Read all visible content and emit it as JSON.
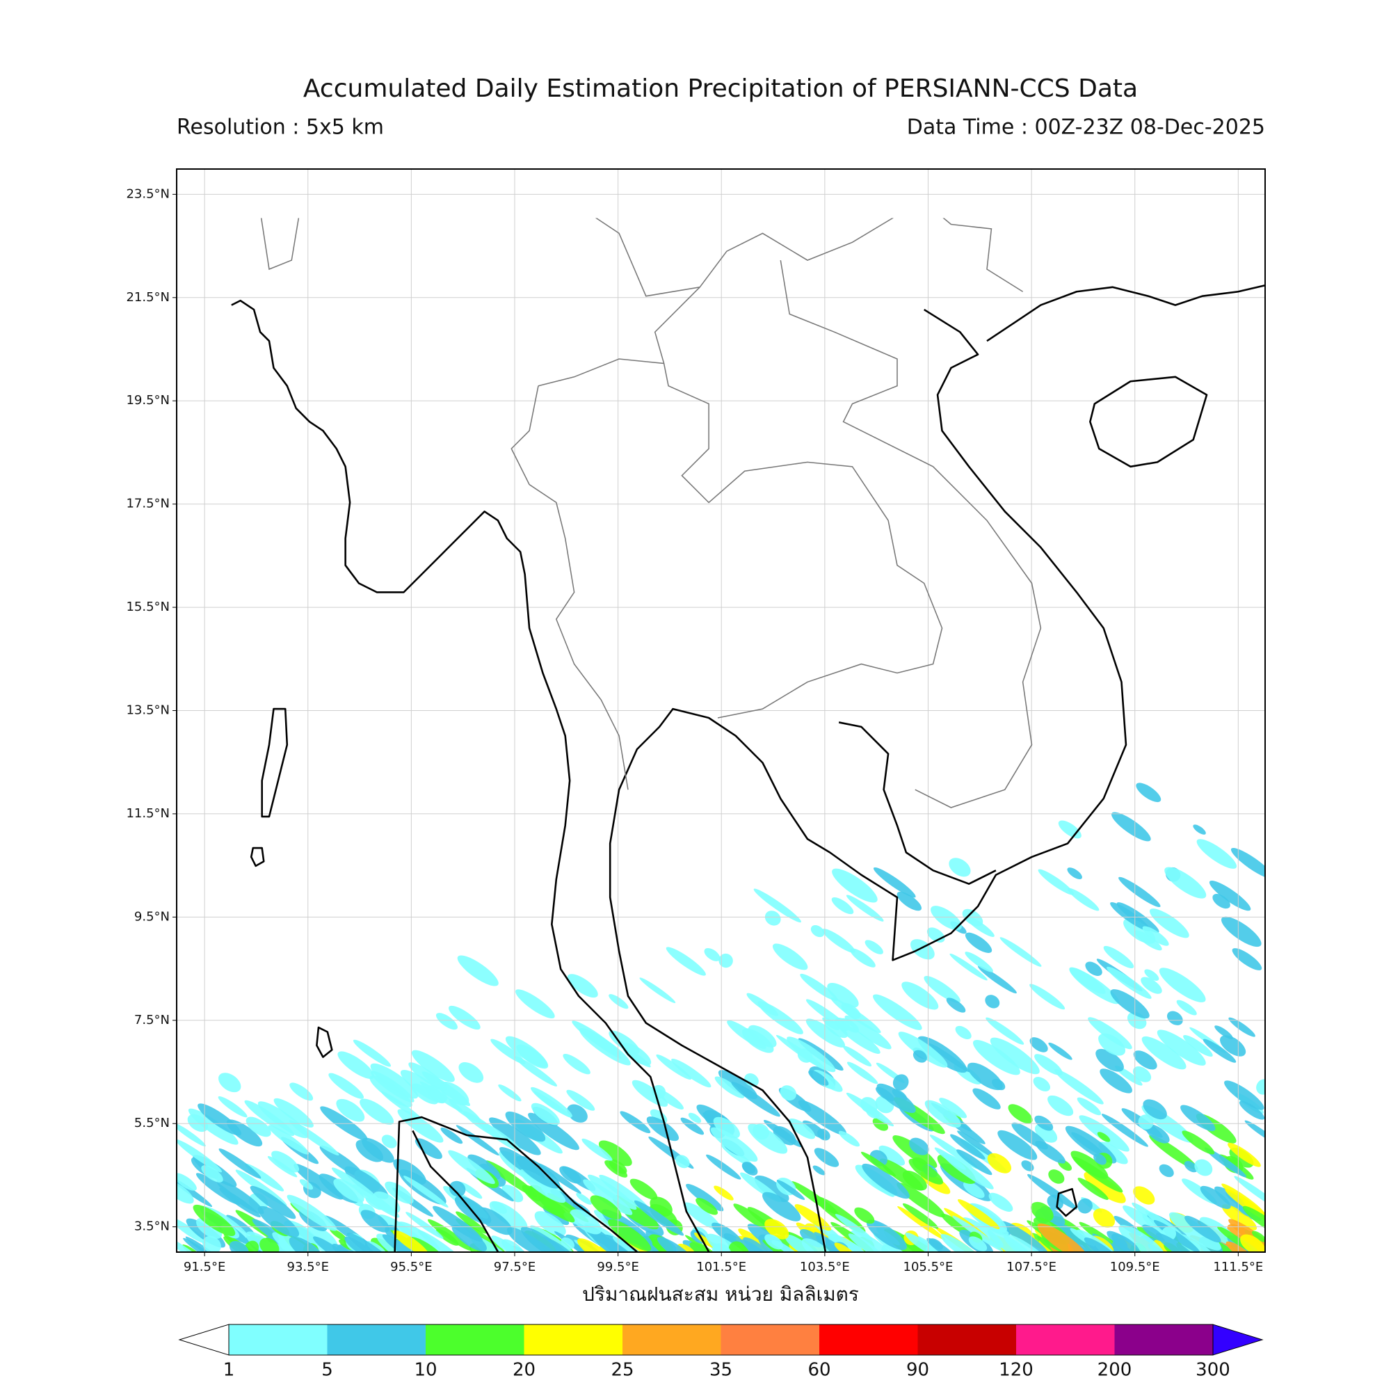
{
  "title": "Accumulated Daily Estimation Precipitation of PERSIANN-CCS Data",
  "resolution": "Resolution : 5x5 km",
  "data_time": "Data Time : 00Z-23Z 08-Dec-2025",
  "x_label": "ปริมาณฝนสะสม หน่วย มิลลิเมตร",
  "xlim": [
    90.96,
    112.02
  ],
  "ylim": [
    3.01,
    23.99
  ],
  "lon_ticks": [
    {
      "value": 91.5,
      "label": "91.5°E"
    },
    {
      "value": 93.5,
      "label": "93.5°E"
    },
    {
      "value": 95.5,
      "label": "95.5°E"
    },
    {
      "value": 97.5,
      "label": "97.5°E"
    },
    {
      "value": 99.5,
      "label": "99.5°E"
    },
    {
      "value": 101.5,
      "label": "101.5°E"
    },
    {
      "value": 103.5,
      "label": "103.5°E"
    },
    {
      "value": 105.5,
      "label": "105.5°E"
    },
    {
      "value": 107.5,
      "label": "107.5°E"
    },
    {
      "value": 109.5,
      "label": "109.5°E"
    },
    {
      "value": 111.5,
      "label": "111.5°E"
    }
  ],
  "lat_ticks": [
    {
      "value": 23.5,
      "label": "23.5°N"
    },
    {
      "value": 21.5,
      "label": "21.5°N"
    },
    {
      "value": 19.5,
      "label": "19.5°N"
    },
    {
      "value": 17.5,
      "label": "17.5°N"
    },
    {
      "value": 15.5,
      "label": "15.5°N"
    },
    {
      "value": 13.5,
      "label": "13.5°N"
    },
    {
      "value": 11.5,
      "label": "11.5°N"
    },
    {
      "value": 9.5,
      "label": "9.5°N"
    },
    {
      "value": 7.5,
      "label": "7.5°N"
    },
    {
      "value": 5.5,
      "label": "5.5°N"
    },
    {
      "value": 3.5,
      "label": "3.5°N"
    }
  ],
  "grid": true,
  "colorbar": {
    "levels": [
      1,
      5,
      10,
      20,
      25,
      35,
      60,
      90,
      120,
      200,
      300
    ],
    "colors": [
      "#80ffff",
      "#40c8e8",
      "#4cff2c",
      "#ffff00",
      "#ffa820",
      "#ff8040",
      "#ff0000",
      "#c80000",
      "#ff1a8c",
      "#8b008b"
    ],
    "under_color": "#ffffff",
    "over_color": "#3300ff"
  }
}
